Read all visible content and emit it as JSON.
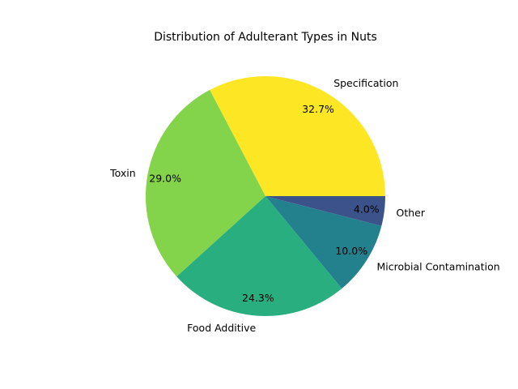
{
  "chart_data": {
    "type": "pie",
    "title": "Distribution of Adulterant Types in Nuts",
    "slices": [
      {
        "label": "Specification",
        "percent": 32.7,
        "percent_label": "32.7%",
        "color": "#fde725"
      },
      {
        "label": "Toxin",
        "percent": 29.0,
        "percent_label": "29.0%",
        "color": "#84d44b"
      },
      {
        "label": "Food Additive",
        "percent": 24.3,
        "percent_label": "24.3%",
        "color": "#29af7f"
      },
      {
        "label": "Microbial Contamination",
        "percent": 10.0,
        "percent_label": "10.0%",
        "color": "#23818d"
      },
      {
        "label": "Other",
        "percent": 4.0,
        "percent_label": "4.0%",
        "color": "#3b528b"
      }
    ],
    "start_angle_deg": 0,
    "direction": "counterclockwise",
    "legend": "none"
  }
}
